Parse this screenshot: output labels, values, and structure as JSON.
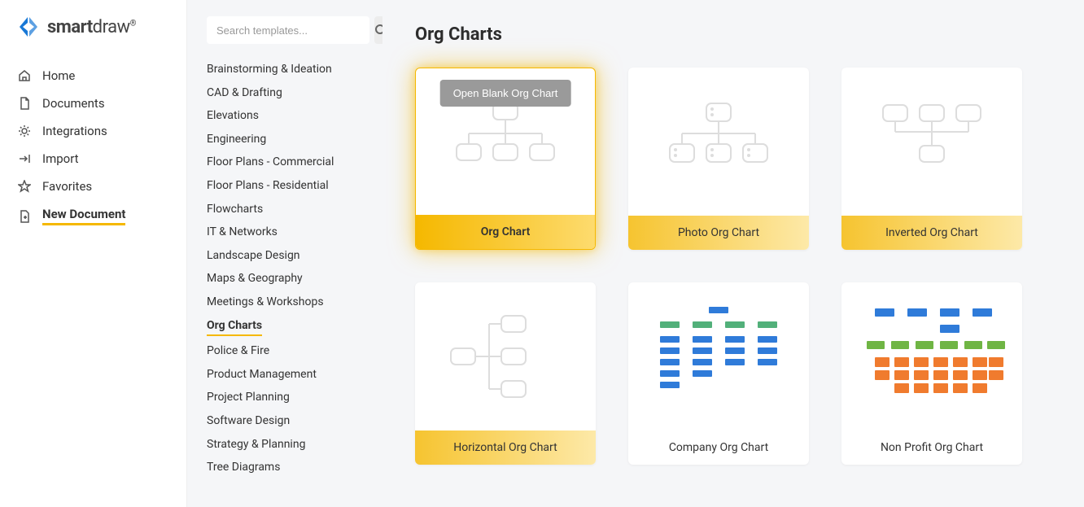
{
  "brand": {
    "name_bold": "smart",
    "name_light": "draw"
  },
  "nav": {
    "items": [
      {
        "label": "Home",
        "icon": "home"
      },
      {
        "label": "Documents",
        "icon": "document"
      },
      {
        "label": "Integrations",
        "icon": "integrations"
      },
      {
        "label": "Import",
        "icon": "import"
      },
      {
        "label": "Favorites",
        "icon": "star"
      },
      {
        "label": "New Document",
        "icon": "new",
        "active": true
      }
    ]
  },
  "search": {
    "placeholder": "Search templates..."
  },
  "categories": [
    "Brainstorming & Ideation",
    "CAD & Drafting",
    "Elevations",
    "Engineering",
    "Floor Plans - Commercial",
    "Floor Plans - Residential",
    "Flowcharts",
    "IT & Networks",
    "Landscape Design",
    "Maps & Geography",
    "Meetings & Workshops",
    "Org Charts",
    "Police & Fire",
    "Product Management",
    "Project Planning",
    "Software Design",
    "Strategy & Planning",
    "Tree Diagrams"
  ],
  "active_category_index": 11,
  "main": {
    "title": "Org Charts",
    "open_blank_label": "Open Blank Org Chart",
    "templates": [
      {
        "label": "Org Chart",
        "style": "gold",
        "glow": true,
        "preview": "basic",
        "show_open": true
      },
      {
        "label": "Photo Org Chart",
        "style": "gold-light",
        "preview": "photo"
      },
      {
        "label": "Inverted Org Chart",
        "style": "gold-light",
        "preview": "inverted"
      },
      {
        "label": "Horizontal Org Chart",
        "style": "gold-light",
        "preview": "horizontal"
      },
      {
        "label": "Company Org Chart",
        "style": "plain",
        "preview": "company"
      },
      {
        "label": "Non Profit Org Chart",
        "style": "plain",
        "preview": "nonprofit"
      }
    ]
  },
  "colors": {
    "accent": "#f5b800",
    "brand_blue": "#1878d6",
    "company_blue": "#2f7bd9",
    "company_green": "#52b07a",
    "np_blue": "#2f7bd9",
    "np_green": "#6fb544",
    "np_orange": "#f07b2e"
  }
}
